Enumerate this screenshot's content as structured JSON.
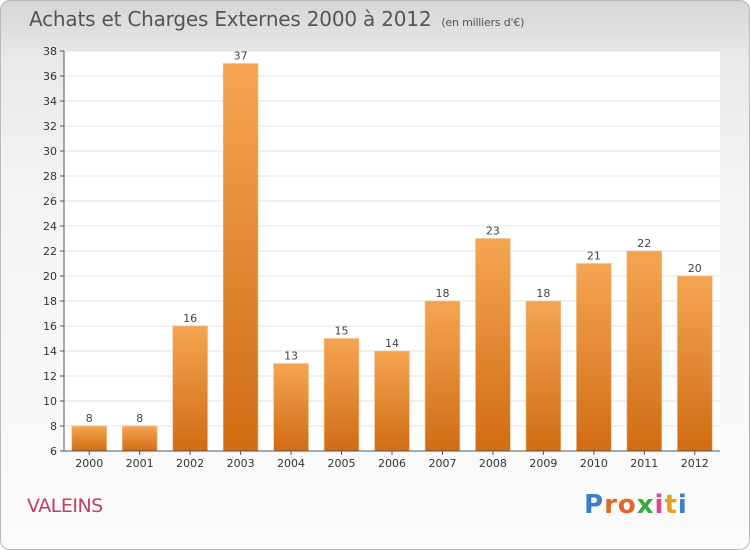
{
  "title": "Achats et Charges Externes 2000 à 2012",
  "unit_note": "(en milliers d'€)",
  "commune": "VALEINS",
  "logo": {
    "letters": [
      "P",
      "r",
      "o",
      "x",
      "i",
      "t",
      "i"
    ],
    "colors": [
      "#3a7fc8",
      "#e0672a",
      "#e0672a",
      "#3aa83a",
      "#d24a8a",
      "#e6a020",
      "#3a7fc8"
    ]
  },
  "colors": {
    "bar_top": "#f5a552",
    "bar_bottom": "#d06c14",
    "grid": "#e3e3e3"
  },
  "chart_data": {
    "type": "bar",
    "categories": [
      "2000",
      "2001",
      "2002",
      "2003",
      "2004",
      "2005",
      "2006",
      "2007",
      "2008",
      "2009",
      "2010",
      "2011",
      "2012"
    ],
    "values": [
      8,
      8,
      16,
      37,
      13,
      15,
      14,
      18,
      23,
      18,
      21,
      22,
      20
    ],
    "ylim": [
      6,
      38
    ],
    "yticks": [
      6,
      8,
      10,
      12,
      14,
      16,
      18,
      20,
      22,
      24,
      26,
      28,
      30,
      32,
      34,
      36,
      38
    ],
    "grid": true,
    "legend": "none"
  }
}
